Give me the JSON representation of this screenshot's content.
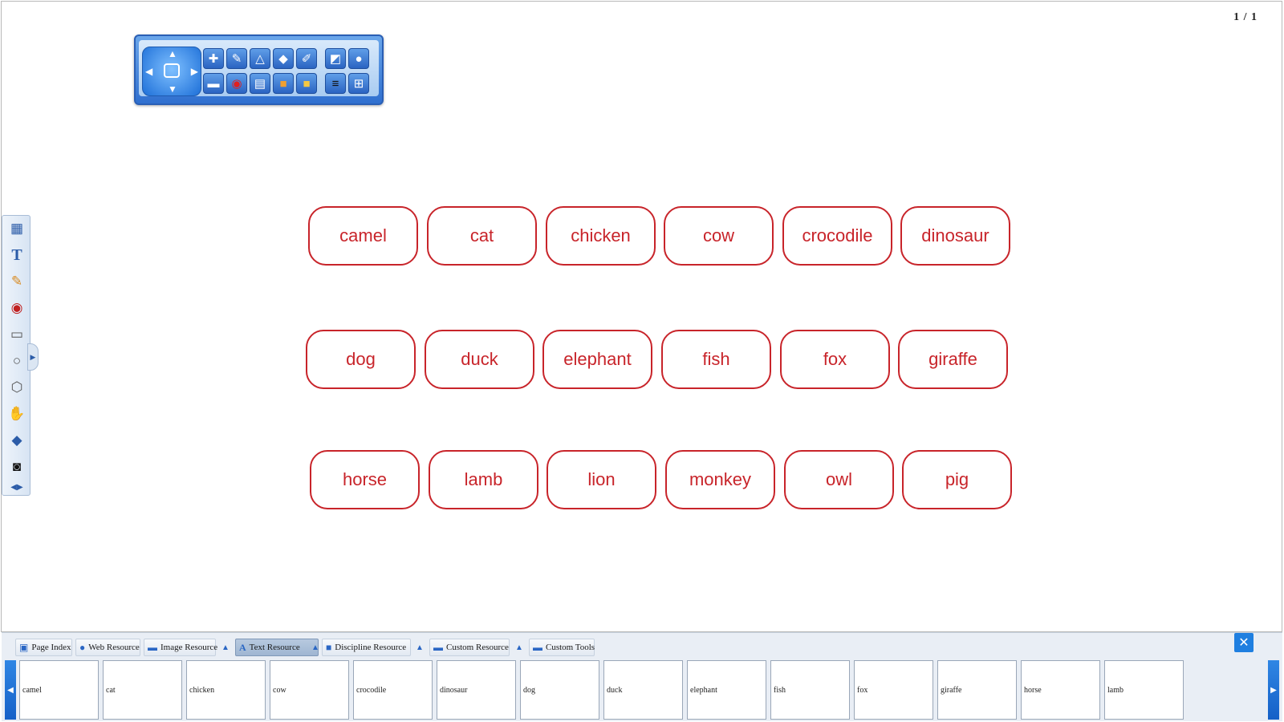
{
  "page_counter": "1 / 1",
  "words": [
    [
      "camel",
      "cat",
      "chicken",
      "cow",
      "crocodile",
      "dinosaur"
    ],
    [
      "dog",
      "duck",
      "elephant",
      "fish",
      "fox",
      "giraffe"
    ],
    [
      "horse",
      "lamb",
      "lion",
      "monkey",
      "owl",
      "pig"
    ]
  ],
  "colors": {
    "card_red": "#c8242a",
    "toolbar_blue": "#2f6fcf",
    "panel_bg": "#e9eef5"
  },
  "top_toolbar": {
    "icons": [
      "new-page-icon",
      "pen-icon",
      "shape-icon",
      "eraser-icon",
      "highlighter-icon",
      "layer-icon",
      "color-palette-icon",
      "screen-capture-icon",
      "record-icon",
      "document-icon",
      "toolbox-icon",
      "folder-icon",
      "line-width-icon",
      "grid-icon"
    ]
  },
  "left_tools": [
    "background-icon",
    "text-icon",
    "pencil-icon",
    "record-icon",
    "rectangle-icon",
    "circle-icon",
    "hexagon-icon",
    "hand-icon",
    "eraser-icon",
    "screen-icon",
    "collapse-arrows-icon"
  ],
  "bottom_panel": {
    "tabs": [
      {
        "label": "Page Index",
        "icon": "page-index-icon"
      },
      {
        "label": "Web Resource",
        "icon": "web-icon"
      },
      {
        "label": "Image Resource",
        "icon": "image-folder-icon"
      },
      {
        "label": "Text Resource",
        "icon": "text-icon"
      },
      {
        "label": "Discipline Resource",
        "icon": "discipline-icon"
      },
      {
        "label": "Custom Resource",
        "icon": "custom-resource-icon"
      },
      {
        "label": "Custom Tools",
        "icon": "custom-tools-icon"
      }
    ],
    "active_tab": "Text Resource",
    "thumbnails": [
      "camel",
      "cat",
      "chicken",
      "cow",
      "crocodile",
      "dinosaur",
      "dog",
      "duck",
      "elephant",
      "fish",
      "fox",
      "giraffe",
      "horse",
      "lamb"
    ]
  }
}
